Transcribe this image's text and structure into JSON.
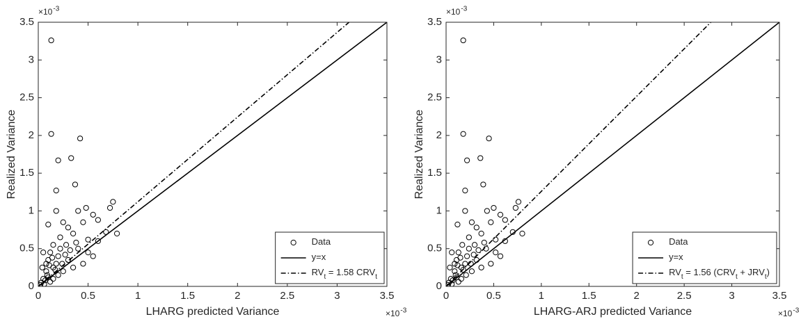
{
  "chart_data": [
    {
      "type": "scatter",
      "x_label": "LHARG predicted Variance",
      "y_label": "Realized Variance",
      "x_multiplier": {
        "base": "×10",
        "exponent": "-3"
      },
      "y_multiplier": {
        "base": "×10",
        "exponent": "-3"
      },
      "xlim": [
        0,
        3.5
      ],
      "ylim": [
        0,
        3.5
      ],
      "xticks": [
        0,
        0.5,
        1,
        1.5,
        2,
        2.5,
        3,
        3.5
      ],
      "yticks": [
        0,
        0.5,
        1,
        1.5,
        2,
        2.5,
        3,
        3.5
      ],
      "legend_position": "lower right",
      "series": [
        {
          "name": "Data",
          "type": "scatter",
          "marker": "open-circle",
          "color": "#000000",
          "x": [
            0.13,
            0.13,
            0.42,
            0.2,
            0.33,
            0.18,
            0.37,
            0.75,
            0.72,
            0.48,
            0.4,
            0.1,
            0.18,
            0.55,
            0.6,
            0.79,
            0.68,
            0.25,
            0.3,
            0.45,
            0.35,
            0.5,
            0.6,
            0.22,
            0.15,
            0.05,
            0.28,
            0.4,
            0.5,
            0.1,
            0.2,
            0.3,
            0.35,
            0.25,
            0.15,
            0.08,
            0.05,
            0.1,
            0.2,
            0.03,
            0.06,
            0.12,
            0.02,
            0.15,
            0.45,
            0.55,
            0.18,
            0.08,
            0.04,
            0.12,
            0.22,
            0.27,
            0.32,
            0.14,
            0.09,
            0.17,
            0.24,
            0.38,
            0.07,
            0.11
          ],
          "values": [
            3.26,
            2.02,
            1.96,
            1.67,
            1.7,
            1.27,
            1.35,
            1.12,
            1.04,
            1.04,
            1.0,
            0.82,
            1.0,
            0.95,
            0.88,
            0.7,
            0.72,
            0.85,
            0.78,
            0.85,
            0.7,
            0.62,
            0.6,
            0.65,
            0.55,
            0.45,
            0.55,
            0.5,
            0.45,
            0.35,
            0.4,
            0.35,
            0.25,
            0.2,
            0.25,
            0.2,
            0.1,
            0.12,
            0.15,
            0.05,
            0.03,
            0.06,
            0.02,
            0.1,
            0.3,
            0.4,
            0.3,
            0.3,
            0.25,
            0.45,
            0.5,
            0.42,
            0.48,
            0.38,
            0.15,
            0.22,
            0.3,
            0.58,
            0.08,
            0.28
          ]
        },
        {
          "name": "y=x",
          "type": "line",
          "dash": "solid",
          "color": "#000000",
          "x": [
            0,
            3.5
          ],
          "values": [
            0,
            3.5
          ]
        },
        {
          "name": "RV_t = 1.58 CRV_t",
          "type": "line",
          "dash": "dashdot",
          "color": "#000000",
          "x": [
            0,
            3.12
          ],
          "values": [
            0,
            3.5
          ]
        }
      ]
    },
    {
      "type": "scatter",
      "x_label": "LHARG-ARJ predicted Variance",
      "y_label": "Realized Variance",
      "x_multiplier": {
        "base": "×10",
        "exponent": "-3"
      },
      "y_multiplier": {
        "base": "×10",
        "exponent": "-3"
      },
      "xlim": [
        0,
        3.5
      ],
      "ylim": [
        0,
        3.5
      ],
      "xticks": [
        0,
        0.5,
        1,
        1.5,
        2,
        2.5,
        3,
        3.5
      ],
      "yticks": [
        0,
        0.5,
        1,
        1.5,
        2,
        2.5,
        3,
        3.5
      ],
      "legend_position": "lower right",
      "series": [
        {
          "name": "Data",
          "type": "scatter",
          "marker": "open-circle",
          "color": "#000000",
          "x": [
            0.18,
            0.18,
            0.45,
            0.22,
            0.36,
            0.2,
            0.39,
            0.76,
            0.73,
            0.5,
            0.43,
            0.12,
            0.2,
            0.57,
            0.62,
            0.8,
            0.7,
            0.27,
            0.32,
            0.47,
            0.37,
            0.52,
            0.62,
            0.24,
            0.17,
            0.06,
            0.3,
            0.42,
            0.52,
            0.11,
            0.22,
            0.32,
            0.37,
            0.27,
            0.16,
            0.09,
            0.05,
            0.11,
            0.21,
            0.03,
            0.06,
            0.13,
            0.02,
            0.16,
            0.47,
            0.57,
            0.2,
            0.09,
            0.04,
            0.13,
            0.24,
            0.29,
            0.34,
            0.15,
            0.1,
            0.18,
            0.26,
            0.4,
            0.07,
            0.12
          ],
          "values": [
            3.26,
            2.02,
            1.96,
            1.67,
            1.7,
            1.27,
            1.35,
            1.12,
            1.04,
            1.04,
            1.0,
            0.82,
            1.0,
            0.95,
            0.88,
            0.7,
            0.72,
            0.85,
            0.78,
            0.85,
            0.7,
            0.62,
            0.6,
            0.65,
            0.55,
            0.45,
            0.55,
            0.5,
            0.45,
            0.35,
            0.4,
            0.35,
            0.25,
            0.2,
            0.25,
            0.2,
            0.1,
            0.12,
            0.15,
            0.05,
            0.03,
            0.06,
            0.02,
            0.1,
            0.3,
            0.4,
            0.3,
            0.3,
            0.25,
            0.45,
            0.5,
            0.42,
            0.48,
            0.38,
            0.15,
            0.22,
            0.3,
            0.58,
            0.08,
            0.28
          ]
        },
        {
          "name": "y=x",
          "type": "line",
          "dash": "solid",
          "color": "#000000",
          "x": [
            0,
            3.5
          ],
          "values": [
            0,
            3.5
          ]
        },
        {
          "name": "RV_t = 1.56 (CRV_t + JRV_t)",
          "type": "line",
          "dash": "dashdot",
          "color": "#000000",
          "x": [
            0,
            2.78
          ],
          "values": [
            0,
            3.5
          ]
        }
      ]
    }
  ]
}
